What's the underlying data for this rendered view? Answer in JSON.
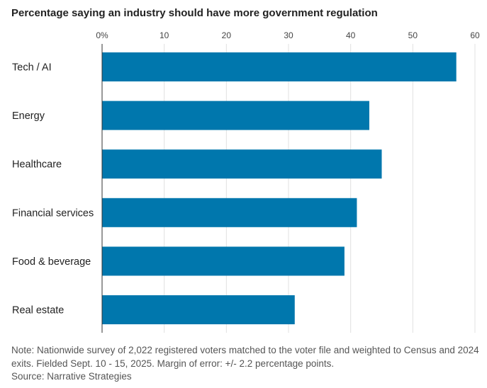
{
  "chart_data": {
    "type": "bar",
    "orientation": "horizontal",
    "title": "Percentage saying an industry should have more government regulation",
    "categories": [
      "Tech / AI",
      "Energy",
      "Healthcare",
      "Financial services",
      "Food & beverage",
      "Real estate"
    ],
    "values": [
      57,
      43,
      45,
      41,
      39,
      31
    ],
    "xlim": [
      0,
      60
    ],
    "ticks": [
      0,
      10,
      20,
      30,
      40,
      50,
      60
    ],
    "tick_labels": [
      "0%",
      "10",
      "20",
      "30",
      "40",
      "50",
      "60"
    ],
    "xlabel": "",
    "ylabel": "",
    "grid": true,
    "bar_color": "#0077ad"
  },
  "note": "Note: Nationwide survey of 2,022 registered voters matched to the voter file and weighted to Census and 2024 exits. Fielded Sept. 10 - 15, 2025. Margin of error: +/- 2.2 percentage points.",
  "source": "Source: Narrative Strategies"
}
